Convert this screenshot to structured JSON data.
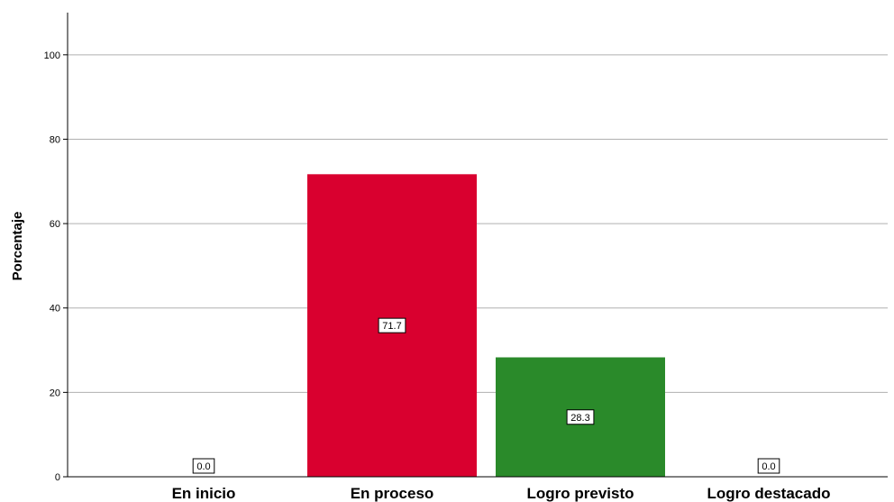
{
  "chart_data": {
    "type": "bar",
    "categories": [
      "En inicio",
      "En proceso",
      "Logro previsto",
      "Logro destacado"
    ],
    "values": [
      0.0,
      71.7,
      28.3,
      0.0
    ],
    "data_labels": [
      "0.0",
      "71.7",
      "28.3",
      "0.0"
    ],
    "colors": [
      "#d9002f",
      "#d9002f",
      "#2a8a2a",
      "#2a8a2a"
    ],
    "ylabel": "Porcentaje",
    "xlabel": "",
    "ylim": [
      0,
      110
    ],
    "yticks": [
      0,
      20,
      40,
      60,
      80,
      100
    ],
    "grid": "horizontal",
    "gridline_color": "#b0b0b0",
    "legend": "none"
  }
}
